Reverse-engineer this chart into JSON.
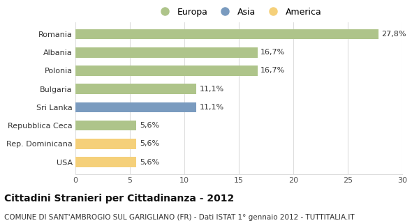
{
  "categories": [
    "Romania",
    "Albania",
    "Polonia",
    "Bulgaria",
    "Sri Lanka",
    "Repubblica Ceca",
    "Rep. Dominicana",
    "USA"
  ],
  "values": [
    27.8,
    16.7,
    16.7,
    11.1,
    11.1,
    5.6,
    5.6,
    5.6
  ],
  "labels": [
    "27,8%",
    "16,7%",
    "16,7%",
    "11,1%",
    "11,1%",
    "5,6%",
    "5,6%",
    "5,6%"
  ],
  "colors": [
    "#aec48a",
    "#aec48a",
    "#aec48a",
    "#aec48a",
    "#7a9bbf",
    "#aec48a",
    "#f5d07a",
    "#f5d07a"
  ],
  "legend": [
    {
      "label": "Europa",
      "color": "#aec48a"
    },
    {
      "label": "Asia",
      "color": "#7a9bbf"
    },
    {
      "label": "America",
      "color": "#f5d07a"
    }
  ],
  "xlim": [
    0,
    30
  ],
  "xticks": [
    0,
    5,
    10,
    15,
    20,
    25,
    30
  ],
  "title": "Cittadini Stranieri per Cittadinanza - 2012",
  "subtitle": "COMUNE DI SANT'AMBROGIO SUL GARIGLIANO (FR) - Dati ISTAT 1° gennaio 2012 - TUTTITALIA.IT",
  "title_fontsize": 10,
  "subtitle_fontsize": 7.5,
  "background_color": "#ffffff",
  "bar_height": 0.55,
  "grid_color": "#dddddd"
}
